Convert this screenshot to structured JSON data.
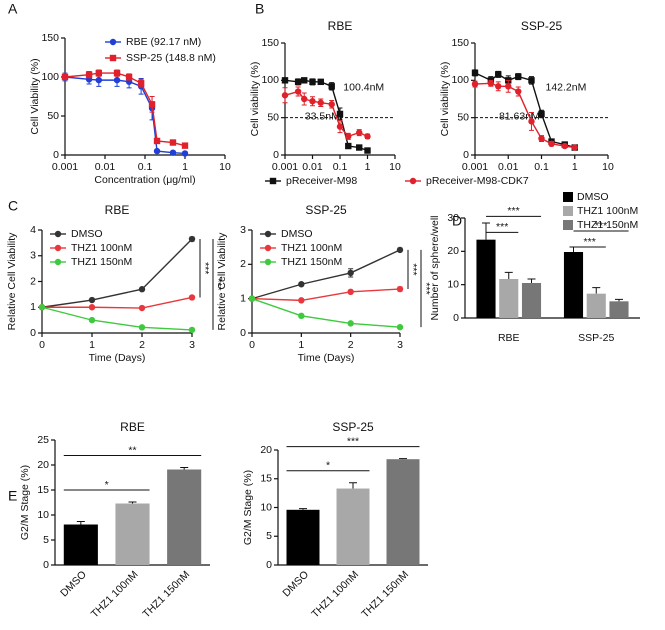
{
  "chart_data": [
    {
      "type": "line",
      "panel": "A",
      "x": [
        0.001,
        0.004,
        0.007,
        0.02,
        0.04,
        0.08,
        0.15,
        0.2,
        0.5,
        1
      ],
      "log_x": true,
      "xlim": [
        0.001,
        10
      ],
      "xticks": [
        0.001,
        0.01,
        0.1,
        1,
        10
      ],
      "ylim": [
        0,
        150
      ],
      "yticks": [
        0,
        50,
        100,
        150
      ],
      "xlabel": "Concentration (μg/ml)",
      "ylabel": "Cell Viability (%)",
      "legend": "top-right",
      "series": [
        {
          "name": "RBE (92.17 nM)",
          "color": "#1f3fd6",
          "marker": "circle",
          "values": [
            100,
            97,
            96,
            96,
            94,
            88,
            60,
            5,
            3,
            2
          ],
          "errors": [
            5,
            6,
            8,
            8,
            8,
            10,
            15,
            2,
            1,
            1
          ]
        },
        {
          "name": "SSP-25 (148.8 nM)",
          "color": "#e0202a",
          "marker": "square",
          "values": [
            100,
            103,
            105,
            105,
            100,
            92,
            65,
            18,
            16,
            12
          ],
          "errors": [
            3,
            4,
            4,
            4,
            4,
            5,
            10,
            3,
            2,
            2
          ]
        }
      ]
    },
    {
      "type": "line",
      "panel": "B",
      "title": "RBE",
      "x": [
        0.001,
        0.003,
        0.005,
        0.01,
        0.02,
        0.05,
        0.1,
        0.2,
        0.5,
        1
      ],
      "log_x": true,
      "xlim": [
        0.001,
        10
      ],
      "xticks": [
        0.001,
        0.01,
        0.1,
        1,
        10
      ],
      "ylim": [
        0,
        150
      ],
      "yticks": [
        0,
        50,
        100,
        150
      ],
      "ylabel": "Cell viability (%)",
      "legend": "bottom",
      "reference_y": 50,
      "annotations": [
        "100.4nM",
        "33.5nM"
      ],
      "series": [
        {
          "name": "pReceiver-M98",
          "color": "#111111",
          "marker": "square",
          "values": [
            100,
            98,
            100,
            98,
            98,
            92,
            55,
            12,
            10,
            6
          ],
          "errors": [
            3,
            4,
            3,
            4,
            3,
            5,
            8,
            3,
            3,
            2
          ]
        },
        {
          "name": "pReceiver-M98-CDK7",
          "color": "#e0202a",
          "marker": "circle",
          "values": [
            80,
            85,
            75,
            72,
            70,
            68,
            38,
            25,
            30,
            25
          ],
          "errors": [
            10,
            6,
            8,
            6,
            5,
            5,
            8,
            4,
            4,
            3
          ]
        }
      ]
    },
    {
      "type": "line",
      "title": "SSP-25",
      "x": [
        0.001,
        0.003,
        0.005,
        0.01,
        0.02,
        0.05,
        0.1,
        0.2,
        0.5,
        1
      ],
      "log_x": true,
      "xlim": [
        0.001,
        10
      ],
      "xticks": [
        0.001,
        0.01,
        0.1,
        1,
        10
      ],
      "ylim": [
        0,
        150
      ],
      "yticks": [
        0,
        50,
        100,
        150
      ],
      "ylabel": "Cell viability (%)",
      "reference_y": 50,
      "annotations": [
        "142.2nM",
        "81.63nM"
      ],
      "series": [
        {
          "color": "#111111",
          "marker": "square",
          "values": [
            110,
            100,
            108,
            100,
            105,
            100,
            55,
            18,
            14,
            10
          ],
          "errors": [
            4,
            5,
            4,
            6,
            4,
            5,
            5,
            3,
            3,
            2
          ]
        },
        {
          "color": "#e0202a",
          "marker": "circle",
          "values": [
            95,
            96,
            92,
            92,
            85,
            45,
            22,
            15,
            12,
            10
          ],
          "errors": [
            4,
            4,
            6,
            8,
            6,
            12,
            4,
            3,
            2,
            2
          ]
        }
      ]
    },
    {
      "type": "line",
      "panel": "C",
      "title": "RBE",
      "x": [
        0,
        1,
        2,
        3
      ],
      "xlim": [
        0,
        3
      ],
      "xticks": [
        0,
        1,
        2,
        3
      ],
      "ylim": [
        0,
        4
      ],
      "yticks": [
        0,
        1,
        2,
        3,
        4
      ],
      "xlabel": "Time (Days)",
      "ylabel": "Relative Cell Viability",
      "legend": "top-left",
      "significance": [
        "***",
        "***"
      ],
      "series": [
        {
          "name": "DMSO",
          "color": "#333333",
          "marker": "circle",
          "values": [
            1,
            1.28,
            1.7,
            3.65
          ],
          "errors": [
            0.02,
            0.04,
            0.05,
            0.08
          ]
        },
        {
          "name": "THZ1 100nM",
          "color": "#e8383d",
          "marker": "circle",
          "values": [
            1,
            1.0,
            0.97,
            1.38
          ],
          "errors": [
            0.02,
            0.03,
            0.03,
            0.07
          ]
        },
        {
          "name": "THZ1 150nM",
          "color": "#3ec93e",
          "marker": "circle",
          "values": [
            1,
            0.5,
            0.22,
            0.12
          ],
          "errors": [
            0.02,
            0.03,
            0.02,
            0.02
          ]
        }
      ]
    },
    {
      "type": "line",
      "title": "SSP-25",
      "x": [
        0,
        1,
        2,
        3
      ],
      "xlim": [
        0,
        3
      ],
      "xticks": [
        0,
        1,
        2,
        3
      ],
      "ylim": [
        0,
        3
      ],
      "yticks": [
        0,
        1,
        2,
        3
      ],
      "xlabel": "Time (Days)",
      "ylabel": "Relative Cell Viability",
      "legend": "top-left",
      "significance": [
        "***",
        "***"
      ],
      "series": [
        {
          "name": "DMSO",
          "color": "#333333",
          "marker": "circle",
          "values": [
            1,
            1.42,
            1.75,
            2.42
          ],
          "errors": [
            0.02,
            0.05,
            0.12,
            0.04
          ]
        },
        {
          "name": "THZ1 100nM",
          "color": "#e8383d",
          "marker": "circle",
          "values": [
            1,
            0.95,
            1.2,
            1.28
          ],
          "errors": [
            0.02,
            0.03,
            0.03,
            0.06
          ]
        },
        {
          "name": "THZ1 150nM",
          "color": "#3ec93e",
          "marker": "circle",
          "values": [
            1,
            0.5,
            0.28,
            0.17
          ],
          "errors": [
            0.02,
            0.05,
            0.02,
            0.02
          ]
        }
      ]
    },
    {
      "type": "bar",
      "panel": "D",
      "categories": [
        "RBE",
        "SSP-25"
      ],
      "ylabel": "Number of sphere/well",
      "ylim": [
        0,
        30
      ],
      "yticks": [
        0,
        10,
        20,
        30
      ],
      "legend": "top-right-outside",
      "significance": [
        "***",
        "***",
        "***",
        "***"
      ],
      "series": [
        {
          "name": "DMSO",
          "color": "#000000",
          "values": [
            23.5,
            19.8
          ],
          "errors": [
            5,
            1.5
          ]
        },
        {
          "name": "THZ1 100nM",
          "color": "#a8a8a8",
          "values": [
            11.7,
            7.3
          ],
          "errors": [
            2,
            1.8
          ]
        },
        {
          "name": "THZ1 150nM",
          "color": "#777777",
          "values": [
            10.5,
            5
          ],
          "errors": [
            1.2,
            0.6
          ]
        }
      ]
    },
    {
      "type": "bar",
      "panel": "E",
      "title": "RBE",
      "categories": [
        "DMSO",
        "THZ1 100nM",
        "THZ1 150nM"
      ],
      "values": [
        8.1,
        12.3,
        19.1
      ],
      "errors": [
        0.6,
        0.3,
        0.4
      ],
      "colors": [
        "#000000",
        "#a8a8a8",
        "#777777"
      ],
      "ylabel": "G2/M Stage (%)",
      "ylim": [
        0,
        25
      ],
      "yticks": [
        0,
        5,
        10,
        15,
        20,
        25
      ],
      "significance": [
        "*",
        "**"
      ]
    },
    {
      "type": "bar",
      "title": "SSP-25",
      "categories": [
        "DMSO",
        "THZ1 100nM",
        "THZ1 150nM"
      ],
      "values": [
        9.6,
        13.3,
        18.4
      ],
      "errors": [
        0.2,
        1.0,
        0.1
      ],
      "colors": [
        "#000000",
        "#a8a8a8",
        "#777777"
      ],
      "ylabel": "G2/M Stage (%)",
      "ylim": [
        0,
        20
      ],
      "yticks": [
        0,
        5,
        10,
        15,
        20
      ],
      "significance": [
        "*",
        "***"
      ]
    }
  ]
}
